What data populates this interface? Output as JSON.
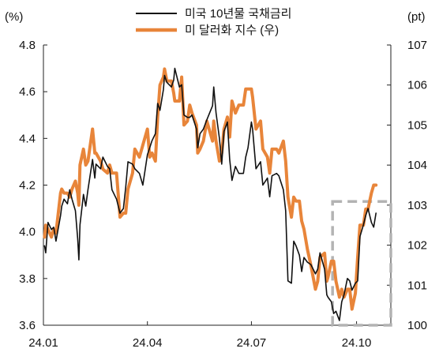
{
  "chart_data": {
    "type": "line",
    "title": "",
    "y_left_unit": "(%)",
    "y_right_unit": "(pt)",
    "ylim_left": [
      3.6,
      4.8
    ],
    "ylim_right": [
      100,
      107
    ],
    "y_left_ticks": [
      "4.8",
      "4.6",
      "4.4",
      "4.2",
      "4.0",
      "3.8",
      "3.6"
    ],
    "y_right_ticks": [
      "107",
      "106",
      "105",
      "104",
      "103",
      "102",
      "101",
      "100"
    ],
    "x_ticks": [
      "24.01",
      "24.04",
      "24.07",
      "24.10"
    ],
    "x_range": [
      "2024-01-01",
      "2024-10-31"
    ],
    "grid": false,
    "legend_position": "top-center",
    "highlight_box": {
      "x_from": "2024-09-10",
      "x_to": "2024-10-31",
      "y_from": 3.6,
      "y_to": 4.13,
      "style": "dashed",
      "color": "#b3b3b3"
    },
    "series": [
      {
        "name": "미국 10년물 국채금리",
        "axis": "left",
        "color": "#111111",
        "points": [
          [
            "2024-01-02",
            3.94
          ],
          [
            "2024-01-03",
            3.91
          ],
          [
            "2024-01-05",
            4.04
          ],
          [
            "2024-01-08",
            4.01
          ],
          [
            "2024-01-10",
            4.02
          ],
          [
            "2024-01-12",
            3.96
          ],
          [
            "2024-01-16",
            4.07
          ],
          [
            "2024-01-17",
            4.11
          ],
          [
            "2024-01-19",
            4.14
          ],
          [
            "2024-01-22",
            4.12
          ],
          [
            "2024-01-24",
            4.18
          ],
          [
            "2024-01-26",
            4.14
          ],
          [
            "2024-01-29",
            4.09
          ],
          [
            "2024-01-31",
            3.97
          ],
          [
            "2024-02-01",
            3.88
          ],
          [
            "2024-02-02",
            4.03
          ],
          [
            "2024-02-05",
            4.16
          ],
          [
            "2024-02-07",
            4.11
          ],
          [
            "2024-02-09",
            4.18
          ],
          [
            "2024-02-13",
            4.31
          ],
          [
            "2024-02-15",
            4.23
          ],
          [
            "2024-02-16",
            4.29
          ],
          [
            "2024-02-20",
            4.27
          ],
          [
            "2024-02-22",
            4.32
          ],
          [
            "2024-02-26",
            4.28
          ],
          [
            "2024-02-28",
            4.27
          ],
          [
            "2024-03-01",
            4.18
          ],
          [
            "2024-03-05",
            4.14
          ],
          [
            "2024-03-08",
            4.08
          ],
          [
            "2024-03-11",
            4.1
          ],
          [
            "2024-03-13",
            4.19
          ],
          [
            "2024-03-15",
            4.3
          ],
          [
            "2024-03-19",
            4.29
          ],
          [
            "2024-03-21",
            4.27
          ],
          [
            "2024-03-25",
            4.25
          ],
          [
            "2024-03-28",
            4.2
          ],
          [
            "2024-04-01",
            4.33
          ],
          [
            "2024-04-03",
            4.36
          ],
          [
            "2024-04-05",
            4.39
          ],
          [
            "2024-04-08",
            4.42
          ],
          [
            "2024-04-10",
            4.55
          ],
          [
            "2024-04-12",
            4.52
          ],
          [
            "2024-04-15",
            4.61
          ],
          [
            "2024-04-16",
            4.67
          ],
          [
            "2024-04-18",
            4.64
          ],
          [
            "2024-04-22",
            4.62
          ],
          [
            "2024-04-24",
            4.65
          ],
          [
            "2024-04-25",
            4.7
          ],
          [
            "2024-04-29",
            4.62
          ],
          [
            "2024-05-01",
            4.63
          ],
          [
            "2024-05-03",
            4.5
          ],
          [
            "2024-05-06",
            4.49
          ],
          [
            "2024-05-08",
            4.49
          ],
          [
            "2024-05-10",
            4.5
          ],
          [
            "2024-05-14",
            4.44
          ],
          [
            "2024-05-15",
            4.36
          ],
          [
            "2024-05-17",
            4.42
          ],
          [
            "2024-05-20",
            4.44
          ],
          [
            "2024-05-23",
            4.48
          ],
          [
            "2024-05-28",
            4.54
          ],
          [
            "2024-05-29",
            4.62
          ],
          [
            "2024-05-31",
            4.51
          ],
          [
            "2024-06-03",
            4.4
          ],
          [
            "2024-06-05",
            4.29
          ],
          [
            "2024-06-07",
            4.43
          ],
          [
            "2024-06-10",
            4.47
          ],
          [
            "2024-06-12",
            4.31
          ],
          [
            "2024-06-14",
            4.22
          ],
          [
            "2024-06-17",
            4.28
          ],
          [
            "2024-06-20",
            4.25
          ],
          [
            "2024-06-24",
            4.25
          ],
          [
            "2024-06-26",
            4.32
          ],
          [
            "2024-06-28",
            4.36
          ],
          [
            "2024-07-01",
            4.47
          ],
          [
            "2024-07-02",
            4.44
          ],
          [
            "2024-07-05",
            4.27
          ],
          [
            "2024-07-09",
            4.3
          ],
          [
            "2024-07-11",
            4.2
          ],
          [
            "2024-07-15",
            4.23
          ],
          [
            "2024-07-17",
            4.15
          ],
          [
            "2024-07-19",
            4.24
          ],
          [
            "2024-07-23",
            4.25
          ],
          [
            "2024-07-25",
            4.24
          ],
          [
            "2024-07-29",
            4.18
          ],
          [
            "2024-07-31",
            4.09
          ],
          [
            "2024-08-02",
            3.79
          ],
          [
            "2024-08-05",
            3.78
          ],
          [
            "2024-08-07",
            3.96
          ],
          [
            "2024-08-09",
            3.94
          ],
          [
            "2024-08-12",
            3.9
          ],
          [
            "2024-08-14",
            3.83
          ],
          [
            "2024-08-16",
            3.89
          ],
          [
            "2024-08-19",
            3.87
          ],
          [
            "2024-08-22",
            3.86
          ],
          [
            "2024-08-26",
            3.82
          ],
          [
            "2024-08-28",
            3.84
          ],
          [
            "2024-08-30",
            3.91
          ],
          [
            "2024-09-03",
            3.84
          ],
          [
            "2024-09-05",
            3.73
          ],
          [
            "2024-09-06",
            3.72
          ],
          [
            "2024-09-09",
            3.7
          ],
          [
            "2024-09-11",
            3.65
          ],
          [
            "2024-09-13",
            3.66
          ],
          [
            "2024-09-16",
            3.62
          ],
          [
            "2024-09-18",
            3.7
          ],
          [
            "2024-09-20",
            3.73
          ],
          [
            "2024-09-23",
            3.8
          ],
          [
            "2024-09-25",
            3.79
          ],
          [
            "2024-09-27",
            3.75
          ],
          [
            "2024-09-30",
            3.78
          ],
          [
            "2024-10-02",
            3.79
          ],
          [
            "2024-10-04",
            3.98
          ],
          [
            "2024-10-07",
            4.03
          ],
          [
            "2024-10-09",
            4.07
          ],
          [
            "2024-10-11",
            4.1
          ],
          [
            "2024-10-14",
            4.04
          ],
          [
            "2024-10-16",
            4.02
          ],
          [
            "2024-10-18",
            4.08
          ]
        ]
      },
      {
        "name": "미 달러화 지수 (우)",
        "axis": "right",
        "color": "#e8853a",
        "points": [
          [
            "2024-01-02",
            102.2
          ],
          [
            "2024-01-03",
            102.5
          ],
          [
            "2024-01-05",
            102.4
          ],
          [
            "2024-01-08",
            102.2
          ],
          [
            "2024-01-10",
            102.4
          ],
          [
            "2024-01-12",
            102.3
          ],
          [
            "2024-01-16",
            103.3
          ],
          [
            "2024-01-17",
            103.4
          ],
          [
            "2024-01-19",
            103.3
          ],
          [
            "2024-01-22",
            103.3
          ],
          [
            "2024-01-24",
            103.2
          ],
          [
            "2024-01-26",
            103.4
          ],
          [
            "2024-01-29",
            103.6
          ],
          [
            "2024-01-31",
            103.3
          ],
          [
            "2024-02-01",
            103.0
          ],
          [
            "2024-02-02",
            104.0
          ],
          [
            "2024-02-05",
            104.4
          ],
          [
            "2024-02-07",
            104.0
          ],
          [
            "2024-02-09",
            104.1
          ],
          [
            "2024-02-13",
            104.9
          ],
          [
            "2024-02-15",
            104.3
          ],
          [
            "2024-02-16",
            104.3
          ],
          [
            "2024-02-20",
            104.1
          ],
          [
            "2024-02-22",
            103.9
          ],
          [
            "2024-02-26",
            103.8
          ],
          [
            "2024-02-28",
            104.0
          ],
          [
            "2024-03-01",
            103.8
          ],
          [
            "2024-03-05",
            103.8
          ],
          [
            "2024-03-08",
            102.7
          ],
          [
            "2024-03-11",
            102.8
          ],
          [
            "2024-03-13",
            102.8
          ],
          [
            "2024-03-15",
            103.4
          ],
          [
            "2024-03-19",
            103.8
          ],
          [
            "2024-03-21",
            104.4
          ],
          [
            "2024-03-25",
            104.2
          ],
          [
            "2024-03-28",
            104.5
          ],
          [
            "2024-04-01",
            104.9
          ],
          [
            "2024-04-03",
            104.2
          ],
          [
            "2024-04-05",
            104.3
          ],
          [
            "2024-04-08",
            104.1
          ],
          [
            "2024-04-10",
            105.2
          ],
          [
            "2024-04-12",
            106.0
          ],
          [
            "2024-04-15",
            106.2
          ],
          [
            "2024-04-16",
            106.4
          ],
          [
            "2024-04-18",
            106.1
          ],
          [
            "2024-04-22",
            106.1
          ],
          [
            "2024-04-24",
            105.8
          ],
          [
            "2024-04-25",
            105.6
          ],
          [
            "2024-04-29",
            105.6
          ],
          [
            "2024-05-01",
            106.2
          ],
          [
            "2024-05-03",
            105.0
          ],
          [
            "2024-05-06",
            105.1
          ],
          [
            "2024-05-08",
            105.5
          ],
          [
            "2024-05-10",
            105.3
          ],
          [
            "2024-05-14",
            105.0
          ],
          [
            "2024-05-15",
            104.3
          ],
          [
            "2024-05-17",
            104.4
          ],
          [
            "2024-05-20",
            104.6
          ],
          [
            "2024-05-23",
            105.1
          ],
          [
            "2024-05-28",
            104.6
          ],
          [
            "2024-05-29",
            105.1
          ],
          [
            "2024-05-31",
            104.6
          ],
          [
            "2024-06-03",
            104.1
          ],
          [
            "2024-06-05",
            104.3
          ],
          [
            "2024-06-07",
            104.9
          ],
          [
            "2024-06-10",
            105.2
          ],
          [
            "2024-06-12",
            104.7
          ],
          [
            "2024-06-14",
            105.6
          ],
          [
            "2024-06-17",
            105.3
          ],
          [
            "2024-06-20",
            105.5
          ],
          [
            "2024-06-24",
            105.5
          ],
          [
            "2024-06-26",
            105.9
          ],
          [
            "2024-06-28",
            105.9
          ],
          [
            "2024-07-01",
            105.9
          ],
          [
            "2024-07-02",
            105.7
          ],
          [
            "2024-07-05",
            104.9
          ],
          [
            "2024-07-09",
            105.1
          ],
          [
            "2024-07-11",
            104.4
          ],
          [
            "2024-07-15",
            104.2
          ],
          [
            "2024-07-17",
            103.8
          ],
          [
            "2024-07-19",
            104.4
          ],
          [
            "2024-07-23",
            104.4
          ],
          [
            "2024-07-25",
            104.3
          ],
          [
            "2024-07-29",
            104.6
          ],
          [
            "2024-07-31",
            104.1
          ],
          [
            "2024-08-02",
            103.2
          ],
          [
            "2024-08-05",
            102.7
          ],
          [
            "2024-08-07",
            103.2
          ],
          [
            "2024-08-09",
            103.1
          ],
          [
            "2024-08-12",
            103.1
          ],
          [
            "2024-08-14",
            102.6
          ],
          [
            "2024-08-16",
            102.4
          ],
          [
            "2024-08-19",
            101.9
          ],
          [
            "2024-08-22",
            101.5
          ],
          [
            "2024-08-26",
            100.9
          ],
          [
            "2024-08-28",
            101.1
          ],
          [
            "2024-08-30",
            101.7
          ],
          [
            "2024-09-03",
            101.8
          ],
          [
            "2024-09-05",
            101.1
          ],
          [
            "2024-09-06",
            101.2
          ],
          [
            "2024-09-09",
            101.6
          ],
          [
            "2024-09-11",
            101.6
          ],
          [
            "2024-09-13",
            101.1
          ],
          [
            "2024-09-16",
            100.7
          ],
          [
            "2024-09-18",
            100.9
          ],
          [
            "2024-09-20",
            100.7
          ],
          [
            "2024-09-23",
            100.9
          ],
          [
            "2024-09-25",
            100.9
          ],
          [
            "2024-09-27",
            100.4
          ],
          [
            "2024-09-30",
            100.8
          ],
          [
            "2024-10-02",
            101.7
          ],
          [
            "2024-10-04",
            102.5
          ],
          [
            "2024-10-07",
            102.5
          ],
          [
            "2024-10-09",
            102.9
          ],
          [
            "2024-10-11",
            102.9
          ],
          [
            "2024-10-14",
            103.3
          ],
          [
            "2024-10-16",
            103.5
          ],
          [
            "2024-10-18",
            103.5
          ]
        ]
      }
    ]
  }
}
